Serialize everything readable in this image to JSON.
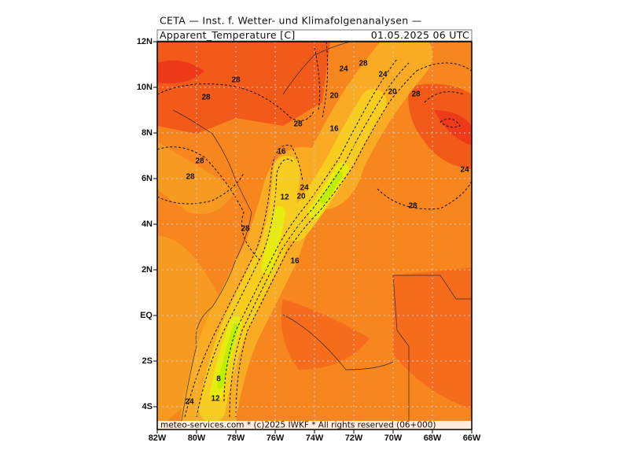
{
  "header": {
    "title": "CETA — Inst. f. Wetter- und Klimafolgenanalysen —",
    "variable": "Apparent_Temperature [C]",
    "datetime": "01.05.2025 06 UTC"
  },
  "map": {
    "lat_range": [
      -5,
      12
    ],
    "lon_range": [
      -82,
      -66
    ],
    "lat_ticks": [
      {
        "value": 12,
        "label": "12N"
      },
      {
        "value": 10,
        "label": "10N"
      },
      {
        "value": 8,
        "label": "8N"
      },
      {
        "value": 6,
        "label": "6N"
      },
      {
        "value": 4,
        "label": "4N"
      },
      {
        "value": 2,
        "label": "2N"
      },
      {
        "value": 0,
        "label": "EQ"
      },
      {
        "value": -2,
        "label": "2S"
      },
      {
        "value": -4,
        "label": "4S"
      }
    ],
    "lon_ticks": [
      {
        "value": -82,
        "label": "82W"
      },
      {
        "value": -80,
        "label": "80W"
      },
      {
        "value": -78,
        "label": "78W"
      },
      {
        "value": -76,
        "label": "76W"
      },
      {
        "value": -74,
        "label": "74W"
      },
      {
        "value": -72,
        "label": "72W"
      },
      {
        "value": -70,
        "label": "70W"
      },
      {
        "value": -68,
        "label": "68W"
      },
      {
        "value": -66,
        "label": "66W"
      }
    ],
    "contour_labels": [
      28,
      28,
      24,
      28,
      24,
      20,
      20,
      28,
      28,
      16,
      28,
      16,
      28,
      24,
      24,
      20,
      12,
      28,
      28,
      16,
      8,
      12,
      24
    ]
  },
  "footer": {
    "credit": "meteo-services.com * (c)2025 IWKF * All rights reserved (06+000)"
  }
}
